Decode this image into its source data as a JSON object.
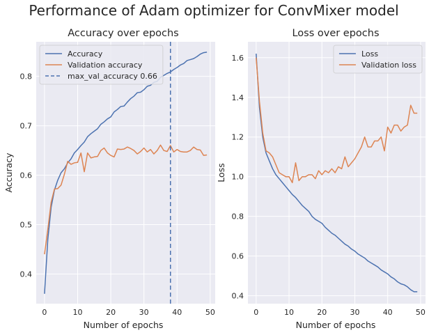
{
  "figure": {
    "suptitle": "Performance of Adam optimizer for ConvMixer model"
  },
  "colors": {
    "blue": "#4c72b0",
    "orange": "#dd8452",
    "panel_bg": "#eaeaf2",
    "grid": "#ffffff"
  },
  "chart_data": [
    {
      "type": "line",
      "title": "Accuracy over epochs",
      "xlabel": "Number of epochs",
      "ylabel": "Accuracy",
      "xlim": [
        -2.5,
        51.5
      ],
      "ylim": [
        0.34,
        0.87
      ],
      "xticks": [
        0,
        10,
        20,
        30,
        40,
        50
      ],
      "yticks": [
        0.4,
        0.5,
        0.6,
        0.7,
        0.8
      ],
      "ytick_labels": [
        "0.4",
        "0.5",
        "0.6",
        "0.7",
        "0.8"
      ],
      "grid": true,
      "legend_position": "top-left",
      "series": [
        {
          "name": "Accuracy",
          "color": "#4c72b0",
          "style": "solid",
          "x": [
            0,
            1,
            2,
            3,
            4,
            5,
            6,
            7,
            8,
            9,
            10,
            11,
            12,
            13,
            14,
            15,
            16,
            17,
            18,
            19,
            20,
            21,
            22,
            23,
            24,
            25,
            26,
            27,
            28,
            29,
            30,
            31,
            32,
            33,
            34,
            35,
            36,
            37,
            38,
            39,
            40,
            41,
            42,
            43,
            44,
            45,
            46,
            47,
            48,
            49
          ],
          "values": [
            0.36,
            0.47,
            0.535,
            0.57,
            0.59,
            0.605,
            0.613,
            0.625,
            0.633,
            0.645,
            0.652,
            0.66,
            0.667,
            0.678,
            0.684,
            0.689,
            0.694,
            0.703,
            0.708,
            0.714,
            0.718,
            0.728,
            0.733,
            0.739,
            0.74,
            0.748,
            0.755,
            0.76,
            0.767,
            0.768,
            0.773,
            0.78,
            0.782,
            0.788,
            0.79,
            0.798,
            0.802,
            0.806,
            0.809,
            0.814,
            0.818,
            0.823,
            0.826,
            0.832,
            0.834,
            0.836,
            0.84,
            0.845,
            0.848,
            0.849
          ]
        },
        {
          "name": "Validation accuracy",
          "color": "#dd8452",
          "style": "solid",
          "x": [
            0,
            1,
            2,
            3,
            4,
            5,
            6,
            7,
            8,
            9,
            10,
            11,
            12,
            13,
            14,
            15,
            16,
            17,
            18,
            19,
            20,
            21,
            22,
            23,
            24,
            25,
            26,
            27,
            28,
            29,
            30,
            31,
            32,
            33,
            34,
            35,
            36,
            37,
            38,
            39,
            40,
            41,
            42,
            43,
            44,
            45,
            46,
            47,
            48,
            49
          ],
          "values": [
            0.44,
            0.49,
            0.545,
            0.572,
            0.573,
            0.58,
            0.602,
            0.628,
            0.622,
            0.625,
            0.626,
            0.645,
            0.607,
            0.645,
            0.635,
            0.637,
            0.638,
            0.65,
            0.655,
            0.645,
            0.64,
            0.637,
            0.653,
            0.652,
            0.653,
            0.657,
            0.654,
            0.65,
            0.643,
            0.648,
            0.655,
            0.647,
            0.652,
            0.643,
            0.65,
            0.661,
            0.65,
            0.648,
            0.66,
            0.647,
            0.652,
            0.648,
            0.647,
            0.647,
            0.65,
            0.657,
            0.652,
            0.651,
            0.64,
            0.641
          ]
        },
        {
          "name": "max_val_accuracy 0.66",
          "color": "#4c72b0",
          "style": "dashed",
          "vline_x": 38
        }
      ]
    },
    {
      "type": "line",
      "title": "Loss over epochs",
      "xlabel": "Number of epochs",
      "ylabel": "Loss",
      "xlim": [
        -2.5,
        51.5
      ],
      "ylim": [
        0.36,
        1.68
      ],
      "xticks": [
        0,
        10,
        20,
        30,
        40,
        50
      ],
      "yticks": [
        0.4,
        0.6,
        0.8,
        1.0,
        1.2,
        1.4,
        1.6
      ],
      "ytick_labels": [
        "0.4",
        "0.6",
        "0.8",
        "1.0",
        "1.2",
        "1.4",
        "1.6"
      ],
      "grid": true,
      "legend_position": "top-right",
      "series": [
        {
          "name": "Loss",
          "color": "#4c72b0",
          "style": "solid",
          "x": [
            0,
            1,
            2,
            3,
            4,
            5,
            6,
            7,
            8,
            9,
            10,
            11,
            12,
            13,
            14,
            15,
            16,
            17,
            18,
            19,
            20,
            21,
            22,
            23,
            24,
            25,
            26,
            27,
            28,
            29,
            30,
            31,
            32,
            33,
            34,
            35,
            36,
            37,
            38,
            39,
            40,
            41,
            42,
            43,
            44,
            45,
            46,
            47,
            48,
            49
          ],
          "values": [
            1.62,
            1.35,
            1.2,
            1.12,
            1.08,
            1.04,
            1.01,
            0.99,
            0.97,
            0.95,
            0.93,
            0.91,
            0.895,
            0.875,
            0.855,
            0.84,
            0.825,
            0.8,
            0.785,
            0.775,
            0.765,
            0.745,
            0.73,
            0.715,
            0.705,
            0.69,
            0.675,
            0.66,
            0.65,
            0.635,
            0.625,
            0.61,
            0.6,
            0.59,
            0.575,
            0.565,
            0.555,
            0.545,
            0.53,
            0.52,
            0.51,
            0.495,
            0.485,
            0.47,
            0.46,
            0.455,
            0.445,
            0.43,
            0.42,
            0.42
          ]
        },
        {
          "name": "Validation loss",
          "color": "#dd8452",
          "style": "solid",
          "x": [
            0,
            1,
            2,
            3,
            4,
            5,
            6,
            7,
            8,
            9,
            10,
            11,
            12,
            13,
            14,
            15,
            16,
            17,
            18,
            19,
            20,
            21,
            22,
            23,
            24,
            25,
            26,
            27,
            28,
            29,
            30,
            31,
            32,
            33,
            34,
            35,
            36,
            37,
            38,
            39,
            40,
            41,
            42,
            43,
            44,
            45,
            46,
            47,
            48,
            49
          ],
          "values": [
            1.6,
            1.38,
            1.22,
            1.13,
            1.12,
            1.1,
            1.06,
            1.02,
            1.01,
            1.0,
            1.0,
            0.97,
            1.07,
            0.98,
            1.0,
            1.0,
            1.01,
            1.01,
            0.99,
            1.03,
            1.01,
            1.03,
            1.02,
            1.04,
            1.02,
            1.05,
            1.04,
            1.1,
            1.05,
            1.07,
            1.09,
            1.12,
            1.15,
            1.2,
            1.15,
            1.15,
            1.18,
            1.18,
            1.2,
            1.13,
            1.25,
            1.22,
            1.26,
            1.26,
            1.23,
            1.25,
            1.26,
            1.36,
            1.32,
            1.32
          ]
        }
      ]
    }
  ]
}
